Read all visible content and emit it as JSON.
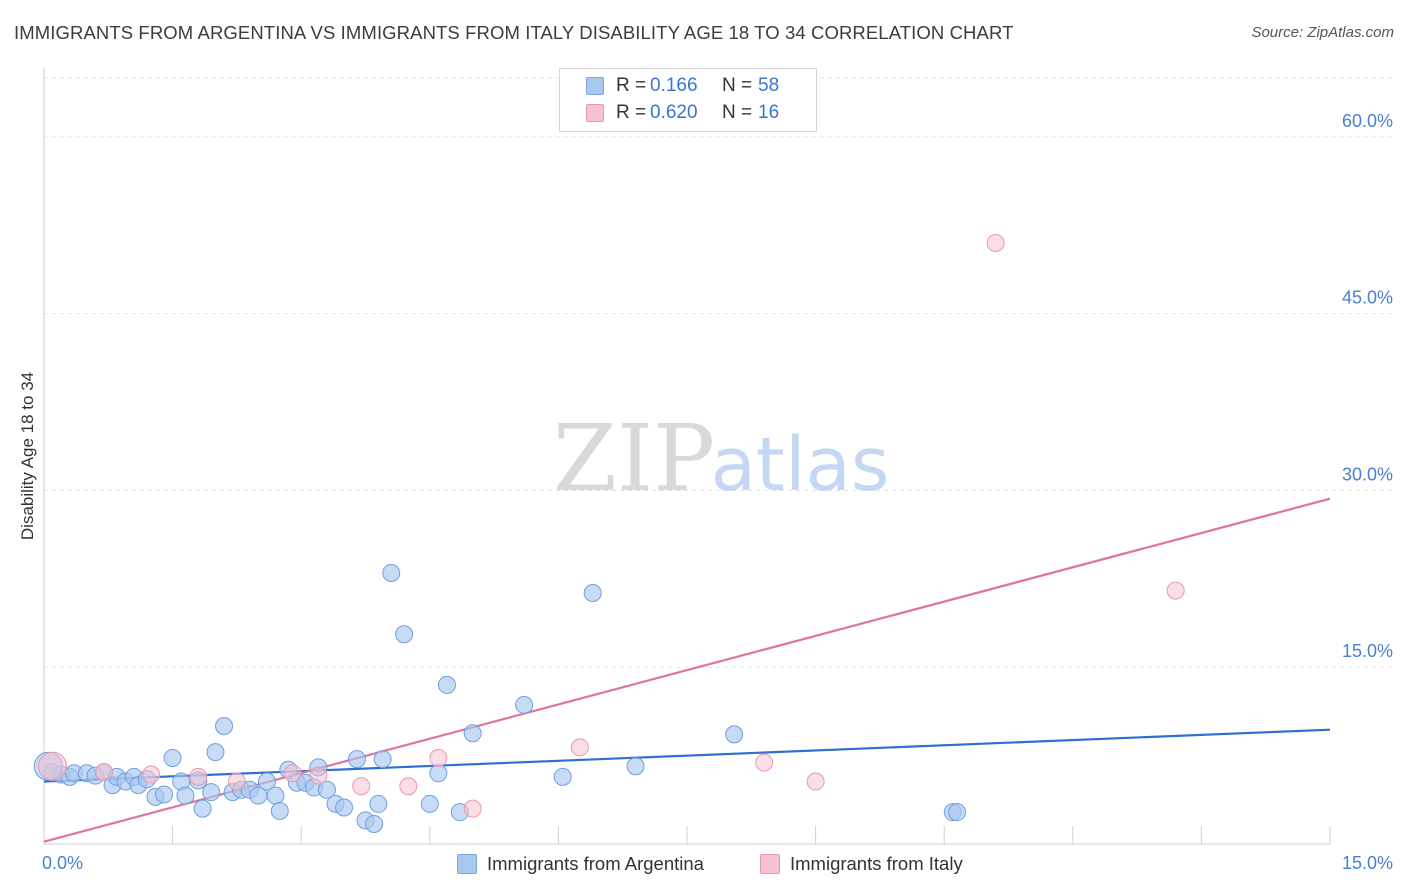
{
  "title": "IMMIGRANTS FROM ARGENTINA VS IMMIGRANTS FROM ITALY DISABILITY AGE 18 TO 34 CORRELATION CHART",
  "source": "Source: ZipAtlas.com",
  "watermark": {
    "zip": "ZIP",
    "atlas": "atlas"
  },
  "legend": {
    "rows": [
      {
        "r_label": "R =",
        "r_value": "0.166",
        "n_label": "N =",
        "n_value": "58",
        "color": "#a9c8f0",
        "border": "#7aa7e0"
      },
      {
        "r_label": "R =",
        "r_value": "0.620",
        "n_label": "N =",
        "n_value": "16",
        "color": "#f6c1d0",
        "border": "#e899b1"
      }
    ]
  },
  "chart_data": {
    "type": "scatter",
    "title": "IMMIGRANTS FROM ARGENTINA VS IMMIGRANTS FROM ITALY DISABILITY AGE 18 TO 34 CORRELATION CHART",
    "xlabel": "",
    "ylabel": "Disability Age 18 to 34",
    "xlim": [
      0,
      15
    ],
    "ylim": [
      0,
      65
    ],
    "x_tick_labels": [
      "0.0%",
      "15.0%"
    ],
    "y_ticks": [
      15,
      30,
      45,
      60
    ],
    "y_tick_labels": [
      "15.0%",
      "30.0%",
      "45.0%",
      "60.0%"
    ],
    "grid": true,
    "legend_position": "top-center",
    "series": [
      {
        "name": "Immigrants from Argentina",
        "color": "#a9c8f0",
        "stroke": "#6e9fe0",
        "trend_color": "#2f6fd0",
        "trend": [
          [
            0,
            5.3
          ],
          [
            15,
            9.7
          ]
        ],
        "points": [
          [
            0.1,
            6.1
          ],
          [
            0.2,
            5.9
          ],
          [
            0.3,
            5.7
          ],
          [
            0.35,
            6.0
          ],
          [
            0.5,
            6.0
          ],
          [
            0.6,
            5.8
          ],
          [
            0.7,
            6.1
          ],
          [
            0.8,
            5.0
          ],
          [
            0.85,
            5.7
          ],
          [
            0.95,
            5.3
          ],
          [
            1.05,
            5.7
          ],
          [
            1.1,
            5.0
          ],
          [
            1.2,
            5.5
          ],
          [
            1.3,
            4.0
          ],
          [
            1.4,
            4.2
          ],
          [
            1.5,
            7.3
          ],
          [
            1.6,
            5.3
          ],
          [
            1.65,
            4.1
          ],
          [
            1.8,
            5.4
          ],
          [
            1.85,
            3.0
          ],
          [
            1.95,
            4.4
          ],
          [
            2.0,
            7.8
          ],
          [
            2.1,
            10.0
          ],
          [
            2.2,
            4.4
          ],
          [
            2.3,
            4.6
          ],
          [
            2.4,
            4.6
          ],
          [
            2.5,
            4.1
          ],
          [
            2.6,
            5.3
          ],
          [
            2.7,
            4.1
          ],
          [
            2.75,
            2.8
          ],
          [
            2.85,
            6.3
          ],
          [
            2.95,
            5.2
          ],
          [
            3.05,
            5.2
          ],
          [
            3.15,
            4.8
          ],
          [
            3.2,
            6.5
          ],
          [
            3.3,
            4.6
          ],
          [
            3.4,
            3.4
          ],
          [
            3.5,
            3.1
          ],
          [
            3.65,
            7.2
          ],
          [
            3.75,
            2.0
          ],
          [
            3.85,
            1.7
          ],
          [
            3.9,
            3.4
          ],
          [
            3.95,
            7.2
          ],
          [
            4.05,
            23.0
          ],
          [
            4.2,
            17.8
          ],
          [
            4.5,
            3.4
          ],
          [
            4.6,
            6.0
          ],
          [
            4.7,
            13.5
          ],
          [
            4.85,
            2.7
          ],
          [
            5.0,
            9.4
          ],
          [
            5.6,
            11.8
          ],
          [
            6.05,
            5.7
          ],
          [
            6.4,
            21.3
          ],
          [
            6.9,
            6.6
          ],
          [
            8.05,
            9.3
          ],
          [
            10.6,
            2.7
          ],
          [
            10.65,
            2.7
          ],
          [
            0.05,
            6.6
          ]
        ]
      },
      {
        "name": "Immigrants from Italy",
        "color": "#f6c1d0",
        "stroke": "#e899b1",
        "trend_color": "#e07399",
        "trend": [
          [
            0,
            0.2
          ],
          [
            15,
            29.3
          ]
        ],
        "points": [
          [
            0.1,
            6.6
          ],
          [
            0.7,
            6.1
          ],
          [
            1.25,
            5.9
          ],
          [
            1.8,
            5.7
          ],
          [
            2.25,
            5.3
          ],
          [
            2.9,
            6.0
          ],
          [
            3.2,
            5.8
          ],
          [
            3.7,
            4.9
          ],
          [
            4.25,
            4.9
          ],
          [
            4.6,
            7.3
          ],
          [
            5.0,
            3.0
          ],
          [
            6.25,
            8.2
          ],
          [
            8.4,
            6.9
          ],
          [
            9.0,
            5.3
          ],
          [
            11.1,
            51.0
          ],
          [
            13.2,
            21.5
          ]
        ]
      }
    ]
  }
}
